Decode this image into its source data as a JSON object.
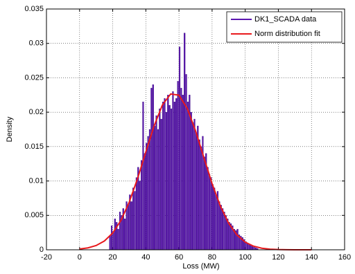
{
  "chart_data": {
    "type": "histogram",
    "xlabel": "Loss (MW)",
    "ylabel": "Density",
    "xlim": [
      -20,
      160
    ],
    "xticks": [
      -20,
      0,
      20,
      40,
      60,
      80,
      100,
      120,
      140,
      160
    ],
    "ylim": [
      0,
      0.035
    ],
    "yticks": [
      0,
      0.005,
      0.01,
      0.015,
      0.02,
      0.025,
      0.03,
      0.035
    ],
    "grid": true,
    "legend": "upper right",
    "series": [
      {
        "name": "DK1_SCADA data",
        "type": "histogram",
        "color": "#5b16b0",
        "bins": [
          18,
          19,
          20,
          21,
          22,
          23,
          24,
          25,
          26,
          27,
          28,
          29,
          30,
          31,
          32,
          33,
          34,
          35,
          36,
          37,
          38,
          39,
          40,
          41,
          42,
          43,
          44,
          45,
          46,
          47,
          48,
          49,
          50,
          51,
          52,
          53,
          54,
          55,
          56,
          57,
          58,
          59,
          60,
          61,
          62,
          63,
          64,
          65,
          66,
          67,
          68,
          69,
          70,
          71,
          72,
          73,
          74,
          75,
          76,
          77,
          78,
          79,
          80,
          81,
          82,
          83,
          84,
          85,
          86,
          87,
          88,
          89,
          90,
          91,
          92,
          93,
          94,
          95,
          96,
          97,
          98,
          99,
          100,
          101,
          102,
          103,
          104,
          105,
          106,
          107,
          108
        ],
        "values": [
          0.002,
          0.0035,
          0.0025,
          0.0045,
          0.004,
          0.003,
          0.0055,
          0.005,
          0.006,
          0.0045,
          0.007,
          0.0065,
          0.008,
          0.007,
          0.009,
          0.0085,
          0.0105,
          0.012,
          0.01,
          0.013,
          0.0215,
          0.014,
          0.0155,
          0.0165,
          0.0175,
          0.0235,
          0.024,
          0.018,
          0.0195,
          0.0175,
          0.0205,
          0.019,
          0.0215,
          0.022,
          0.02,
          0.0225,
          0.021,
          0.0205,
          0.023,
          0.0215,
          0.022,
          0.0245,
          0.0295,
          0.0235,
          0.0225,
          0.0315,
          0.0255,
          0.0215,
          0.0225,
          0.02,
          0.0185,
          0.019,
          0.017,
          0.018,
          0.016,
          0.015,
          0.0165,
          0.0135,
          0.014,
          0.012,
          0.011,
          0.0105,
          0.0095,
          0.009,
          0.008,
          0.0085,
          0.007,
          0.0065,
          0.006,
          0.0055,
          0.005,
          0.0045,
          0.004,
          0.0038,
          0.0035,
          0.003,
          0.0028,
          0.003,
          0.0022,
          0.002,
          0.0018,
          0.0015,
          0.0012,
          0.001,
          0.0008,
          0.0007,
          0.0005,
          0.0004,
          0.0003,
          0.0002
        ]
      },
      {
        "name": "Norm distribution fit",
        "type": "line",
        "color": "#e8191c",
        "x": [
          0,
          5,
          10,
          15,
          20,
          25,
          30,
          35,
          40,
          45,
          50,
          55,
          60,
          65,
          70,
          75,
          80,
          85,
          90,
          95,
          100,
          105,
          110,
          115,
          120,
          125,
          130,
          135,
          140
        ],
        "values": [
          0.000113,
          0.000276,
          0.000619,
          0.00128,
          0.00244,
          0.00428,
          0.00694,
          0.01035,
          0.01423,
          0.01802,
          0.02105,
          0.02265,
          0.02247,
          0.02054,
          0.0173,
          0.01343,
          0.00961,
          0.00634,
          0.00385,
          0.00216,
          0.00111,
          0.00053,
          0.00023,
          9.4e-05,
          3.5e-05,
          1.2e-05,
          4e-06,
          1e-06,
          0
        ]
      }
    ]
  }
}
